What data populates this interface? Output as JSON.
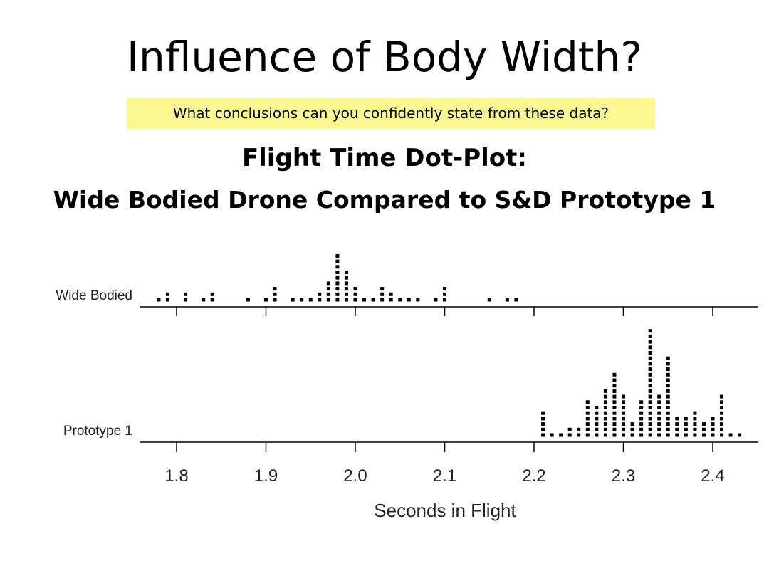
{
  "slide": {
    "title": "Influence of Body Width?",
    "prompt": "What conclusions can you confidently state from these data?"
  },
  "chart_data": {
    "type": "scatter",
    "title": "Flight Time Dot-Plot:",
    "subtitle": "Wide Bodied Drone Compared to S&D Prototype 1",
    "xlabel": "Seconds in Flight",
    "xlim": [
      1.75,
      2.45
    ],
    "xticks": [
      "1.8",
      "1.9",
      "2.0",
      "2.1",
      "2.2",
      "2.3",
      "2.4"
    ],
    "grid": false,
    "series": [
      {
        "name": "Wide Bodied",
        "values": [
          {
            "x": 1.78,
            "count": 1
          },
          {
            "x": 1.79,
            "count": 2
          },
          {
            "x": 1.81,
            "count": 2
          },
          {
            "x": 1.83,
            "count": 1
          },
          {
            "x": 1.84,
            "count": 2
          },
          {
            "x": 1.88,
            "count": 1
          },
          {
            "x": 1.9,
            "count": 1
          },
          {
            "x": 1.91,
            "count": 3
          },
          {
            "x": 1.93,
            "count": 1
          },
          {
            "x": 1.94,
            "count": 1
          },
          {
            "x": 1.95,
            "count": 1
          },
          {
            "x": 1.96,
            "count": 2
          },
          {
            "x": 1.97,
            "count": 4
          },
          {
            "x": 1.98,
            "count": 9
          },
          {
            "x": 1.99,
            "count": 6
          },
          {
            "x": 2.0,
            "count": 3
          },
          {
            "x": 2.01,
            "count": 1
          },
          {
            "x": 2.02,
            "count": 1
          },
          {
            "x": 2.03,
            "count": 3
          },
          {
            "x": 2.04,
            "count": 2
          },
          {
            "x": 2.05,
            "count": 1
          },
          {
            "x": 2.06,
            "count": 1
          },
          {
            "x": 2.07,
            "count": 1
          },
          {
            "x": 2.09,
            "count": 1
          },
          {
            "x": 2.1,
            "count": 3
          },
          {
            "x": 2.15,
            "count": 1
          },
          {
            "x": 2.17,
            "count": 1
          },
          {
            "x": 2.18,
            "count": 1
          }
        ]
      },
      {
        "name": "Prototype 1",
        "values": [
          {
            "x": 2.21,
            "count": 5
          },
          {
            "x": 2.22,
            "count": 1
          },
          {
            "x": 2.23,
            "count": 1
          },
          {
            "x": 2.24,
            "count": 2
          },
          {
            "x": 2.25,
            "count": 2
          },
          {
            "x": 2.26,
            "count": 7
          },
          {
            "x": 2.27,
            "count": 6
          },
          {
            "x": 2.28,
            "count": 9
          },
          {
            "x": 2.29,
            "count": 12
          },
          {
            "x": 2.3,
            "count": 8
          },
          {
            "x": 2.31,
            "count": 3
          },
          {
            "x": 2.32,
            "count": 7
          },
          {
            "x": 2.33,
            "count": 20
          },
          {
            "x": 2.34,
            "count": 8
          },
          {
            "x": 2.35,
            "count": 15
          },
          {
            "x": 2.36,
            "count": 4
          },
          {
            "x": 2.37,
            "count": 4
          },
          {
            "x": 2.38,
            "count": 5
          },
          {
            "x": 2.39,
            "count": 3
          },
          {
            "x": 2.4,
            "count": 4
          },
          {
            "x": 2.41,
            "count": 8
          },
          {
            "x": 2.42,
            "count": 1
          },
          {
            "x": 2.43,
            "count": 1
          }
        ]
      }
    ]
  }
}
